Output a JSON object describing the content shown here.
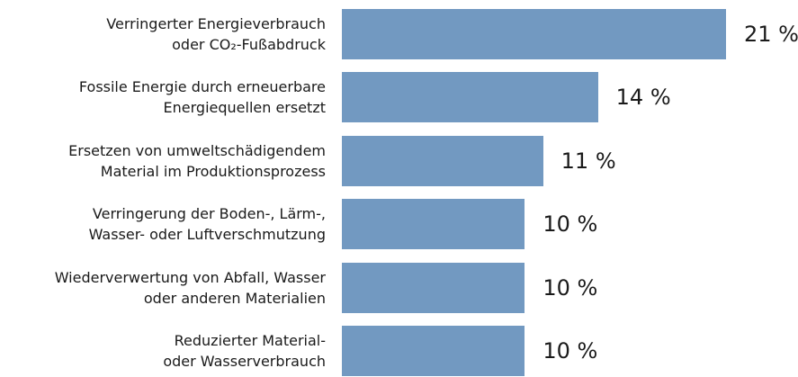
{
  "chart_data": {
    "type": "bar",
    "orientation": "horizontal",
    "categories": [
      "Verringerter Energieverbrauch\noder CO₂-Fußabdruck",
      "Fossile Energie durch erneuerbare\nEnergiequellen ersetzt",
      "Ersetzen von umweltschädigendem\nMaterial im Produktionsprozess",
      "Verringerung der Boden-, Lärm-,\nWasser- oder Luftverschmutzung",
      "Wiederverwertung von Abfall, Wasser\noder anderen Materialien",
      "Reduzierter Material-\noder Wasserverbrauch"
    ],
    "values": [
      21,
      14,
      11,
      10,
      10,
      10
    ],
    "value_labels": [
      "21 %",
      "14 %",
      "11 %",
      "10 %",
      "10 %",
      "10 %"
    ],
    "color": "#7299c1"
  }
}
